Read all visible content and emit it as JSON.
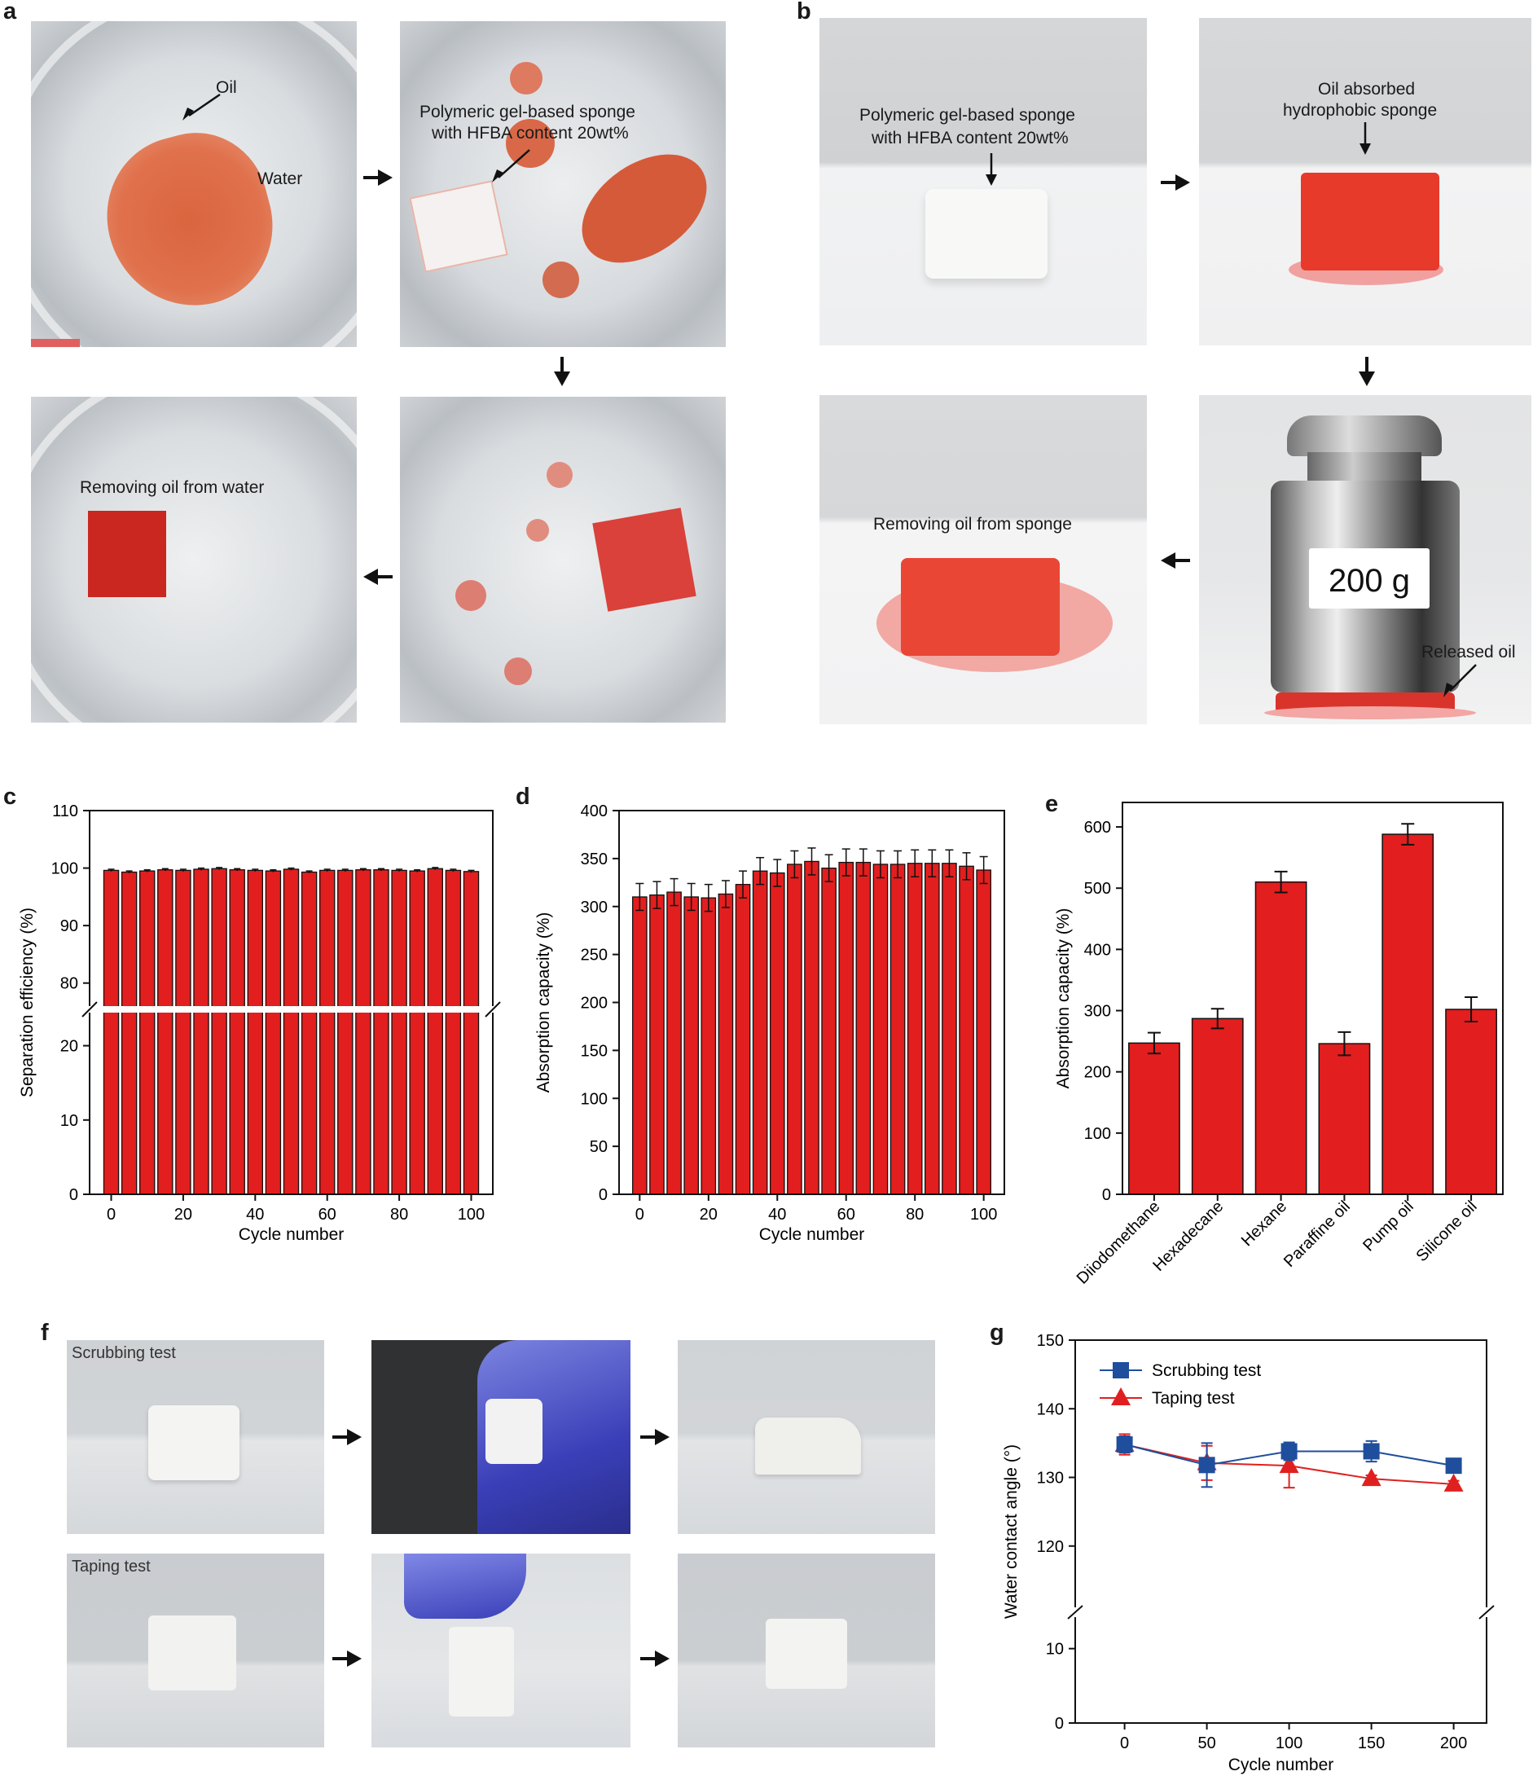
{
  "panels": {
    "a": "a",
    "b": "b",
    "c": "c",
    "d": "d",
    "e": "e",
    "f": "f",
    "g": "g"
  },
  "panel_a": {
    "oil_label": "Oil",
    "water_label": "Water",
    "sponge_label_1": "Polymeric gel-based sponge",
    "sponge_label_2": "with HFBA content 20wt%",
    "removing_label": "Removing oil from water"
  },
  "panel_b": {
    "sponge_label_1": "Polymeric gel-based sponge",
    "sponge_label_2": "with HFBA content 20wt%",
    "absorbed_label_1": "Oil absorbed",
    "absorbed_label_2": "hydrophobic sponge",
    "weight_label": "200 g",
    "released_label": "Released oil",
    "removing_label": "Removing oil from sponge"
  },
  "panel_f": {
    "scrubbing_label": "Scrubbing test",
    "taping_label": "Taping test"
  },
  "colors": {
    "bar_red": "#e31e1e",
    "blue_series": "#1f4e9c",
    "red_series": "#e02020"
  },
  "chart_data": [
    {
      "id": "c",
      "type": "bar",
      "xlabel": "Cycle number",
      "ylabel": "Separation efficiency (%)",
      "axis_break": true,
      "ylim_lower": [
        0,
        25
      ],
      "ylim_upper": [
        75,
        110
      ],
      "yticks_lower": [
        "0",
        "10",
        "20"
      ],
      "yticks_upper": [
        "80",
        "90",
        "100",
        "110"
      ],
      "xticks": [
        "0",
        "20",
        "40",
        "60",
        "80",
        "100"
      ],
      "x": [
        0,
        5,
        10,
        15,
        20,
        25,
        30,
        35,
        40,
        45,
        50,
        55,
        60,
        65,
        70,
        75,
        80,
        85,
        90,
        95,
        100
      ],
      "values": [
        99.6,
        99.3,
        99.5,
        99.7,
        99.6,
        99.8,
        99.9,
        99.7,
        99.6,
        99.5,
        99.8,
        99.3,
        99.6,
        99.6,
        99.7,
        99.7,
        99.6,
        99.5,
        99.9,
        99.6,
        99.4
      ],
      "errors": [
        0.2,
        0.2,
        0.2,
        0.2,
        0.2,
        0.2,
        0.2,
        0.2,
        0.2,
        0.2,
        0.2,
        0.2,
        0.2,
        0.2,
        0.2,
        0.2,
        0.2,
        0.2,
        0.2,
        0.2,
        0.2
      ]
    },
    {
      "id": "d",
      "type": "bar",
      "xlabel": "Cycle number",
      "ylabel": "Absorption capacity (%)",
      "ylim": [
        0,
        400
      ],
      "yticks": [
        "0",
        "50",
        "100",
        "150",
        "200",
        "250",
        "300",
        "350",
        "400"
      ],
      "xticks": [
        "0",
        "20",
        "40",
        "60",
        "80",
        "100"
      ],
      "x": [
        0,
        5,
        10,
        15,
        20,
        25,
        30,
        35,
        40,
        45,
        50,
        55,
        60,
        65,
        70,
        75,
        80,
        85,
        90,
        95,
        100
      ],
      "values": [
        310,
        312,
        315,
        310,
        309,
        313,
        323,
        337,
        335,
        344,
        347,
        340,
        346,
        346,
        344,
        344,
        345,
        345,
        345,
        342,
        338
      ],
      "errors": [
        14,
        14,
        14,
        14,
        14,
        14,
        14,
        14,
        14,
        14,
        14,
        14,
        14,
        14,
        14,
        14,
        14,
        14,
        14,
        14,
        14
      ]
    },
    {
      "id": "e",
      "type": "bar",
      "ylabel": "Absorption capacity (%)",
      "ylim": [
        0,
        640
      ],
      "yticks": [
        "0",
        "100",
        "200",
        "300",
        "400",
        "500",
        "600"
      ],
      "categories": [
        "Diiodomethane",
        "Hexadecane",
        "Hexane",
        "Paraffine oil",
        "Pump oil",
        "Silicone oil"
      ],
      "values": [
        247,
        287,
        510,
        246,
        588,
        302
      ],
      "errors": [
        17,
        16,
        17,
        19,
        17,
        20
      ]
    },
    {
      "id": "g",
      "type": "line",
      "xlabel": "Cycle number",
      "ylabel": "Water contact angle (°)",
      "axis_break": true,
      "xlim": [
        -30,
        220
      ],
      "xticks": [
        "0",
        "50",
        "100",
        "150",
        "200"
      ],
      "yticks_lower": [
        "0",
        "10"
      ],
      "yticks_upper": [
        "120",
        "130",
        "140",
        "150"
      ],
      "ylim_lower": [
        0,
        15
      ],
      "ylim_upper": [
        110,
        150
      ],
      "series": [
        {
          "name": "Scrubbing test",
          "marker": "square",
          "x": [
            0,
            50,
            100,
            150,
            200
          ],
          "values": [
            134.8,
            131.8,
            133.8,
            133.8,
            131.7
          ],
          "errors": [
            1.2,
            3.2,
            1.3,
            1.5,
            0.4
          ]
        },
        {
          "name": "Taping test",
          "marker": "triangle",
          "x": [
            0,
            50,
            100,
            150,
            200
          ],
          "values": [
            134.8,
            132.1,
            131.7,
            129.8,
            129.0
          ],
          "errors": [
            1.5,
            2.5,
            3.2,
            0.5,
            0.5
          ]
        }
      ]
    }
  ]
}
